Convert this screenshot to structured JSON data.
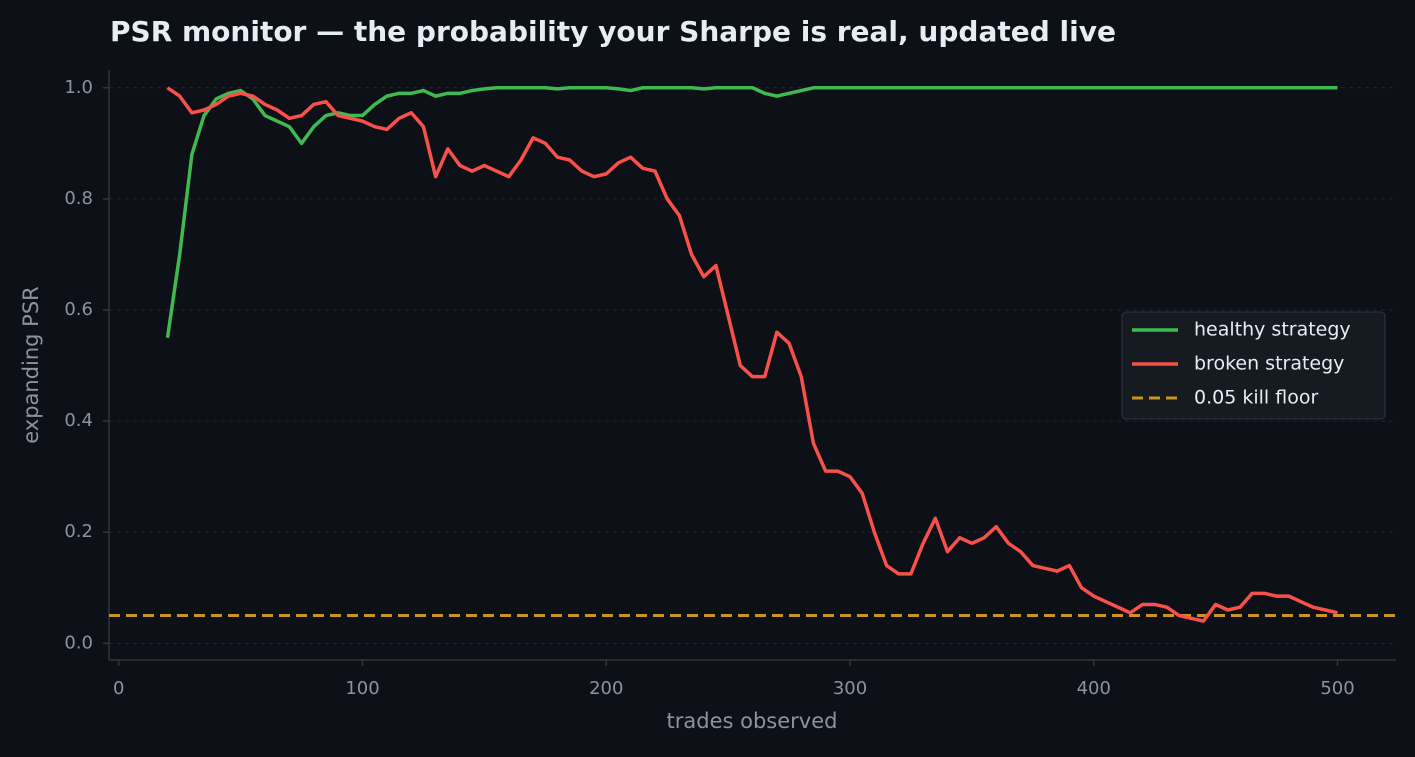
{
  "chart_data": {
    "type": "line",
    "title": "PSR monitor — the probability your Sharpe is real, updated live",
    "x_label": "trades observed",
    "y_label": "expanding PSR",
    "x": [
      20,
      25,
      30,
      35,
      40,
      45,
      50,
      55,
      60,
      65,
      70,
      75,
      80,
      85,
      90,
      95,
      100,
      105,
      110,
      115,
      120,
      125,
      130,
      135,
      140,
      145,
      150,
      155,
      160,
      165,
      170,
      175,
      180,
      185,
      190,
      195,
      200,
      205,
      210,
      215,
      220,
      225,
      230,
      235,
      240,
      245,
      250,
      255,
      260,
      265,
      270,
      275,
      280,
      285,
      290,
      295,
      300,
      305,
      310,
      315,
      320,
      325,
      330,
      335,
      340,
      345,
      350,
      355,
      360,
      365,
      370,
      375,
      380,
      385,
      390,
      395,
      400,
      405,
      410,
      415,
      420,
      425,
      430,
      435,
      440,
      445,
      450,
      455,
      460,
      465,
      470,
      475,
      480,
      485,
      490,
      495,
      500
    ],
    "series": [
      {
        "name": "healthy strategy",
        "color": "#3fb950",
        "values": [
          0.55,
          0.7,
          0.88,
          0.95,
          0.98,
          0.99,
          0.995,
          0.98,
          0.95,
          0.94,
          0.93,
          0.9,
          0.93,
          0.95,
          0.955,
          0.95,
          0.95,
          0.97,
          0.985,
          0.99,
          0.99,
          0.995,
          0.985,
          0.99,
          0.99,
          0.995,
          0.998,
          1.0,
          1.0,
          1.0,
          1.0,
          1.0,
          0.998,
          1.0,
          1.0,
          1.0,
          1.0,
          0.998,
          0.995,
          1.0,
          1.0,
          1.0,
          1.0,
          1.0,
          0.998,
          1.0,
          1.0,
          1.0,
          1.0,
          0.99,
          0.985,
          0.99,
          0.995,
          1.0,
          1.0,
          1.0,
          1.0,
          1.0,
          1.0,
          1.0,
          1.0,
          1.0,
          1.0,
          1.0,
          1.0,
          1.0,
          1.0,
          1.0,
          1.0,
          1.0,
          1.0,
          1.0,
          1.0,
          1.0,
          1.0,
          1.0,
          1.0,
          1.0,
          1.0,
          1.0,
          1.0,
          1.0,
          1.0,
          1.0,
          1.0,
          1.0,
          1.0,
          1.0,
          1.0,
          1.0,
          1.0,
          1.0,
          1.0,
          1.0,
          1.0,
          1.0,
          1.0
        ]
      },
      {
        "name": "broken strategy",
        "color": "#f85149",
        "values": [
          1.0,
          0.985,
          0.955,
          0.96,
          0.97,
          0.985,
          0.99,
          0.985,
          0.97,
          0.96,
          0.945,
          0.95,
          0.97,
          0.975,
          0.95,
          0.945,
          0.94,
          0.93,
          0.925,
          0.945,
          0.955,
          0.93,
          0.84,
          0.89,
          0.86,
          0.85,
          0.86,
          0.85,
          0.84,
          0.87,
          0.91,
          0.9,
          0.875,
          0.87,
          0.85,
          0.84,
          0.845,
          0.865,
          0.875,
          0.855,
          0.85,
          0.8,
          0.77,
          0.7,
          0.66,
          0.68,
          0.59,
          0.5,
          0.48,
          0.48,
          0.56,
          0.54,
          0.48,
          0.36,
          0.31,
          0.31,
          0.3,
          0.27,
          0.2,
          0.14,
          0.125,
          0.125,
          0.18,
          0.225,
          0.165,
          0.19,
          0.18,
          0.19,
          0.21,
          0.18,
          0.165,
          0.14,
          0.135,
          0.13,
          0.14,
          0.1,
          0.085,
          0.075,
          0.065,
          0.055,
          0.07,
          0.07,
          0.065,
          0.05,
          0.045,
          0.04,
          0.07,
          0.06,
          0.065,
          0.09,
          0.09,
          0.085,
          0.085,
          0.075,
          0.065,
          0.06,
          0.055
        ]
      }
    ],
    "threshold": {
      "name": "0.05 kill floor",
      "value": 0.05,
      "color": "#c9941f"
    },
    "xlim": [
      -4,
      524
    ],
    "ylim": [
      -0.03,
      1.032
    ],
    "xticks": [
      0,
      100,
      200,
      300,
      400,
      500
    ],
    "yticks": [
      {
        "value": 0,
        "label": "0.0"
      },
      0.2,
      0.4,
      0.6,
      0.8,
      {
        "value": 1,
        "label": "1.0"
      }
    ],
    "grid": true,
    "legend": "right"
  }
}
